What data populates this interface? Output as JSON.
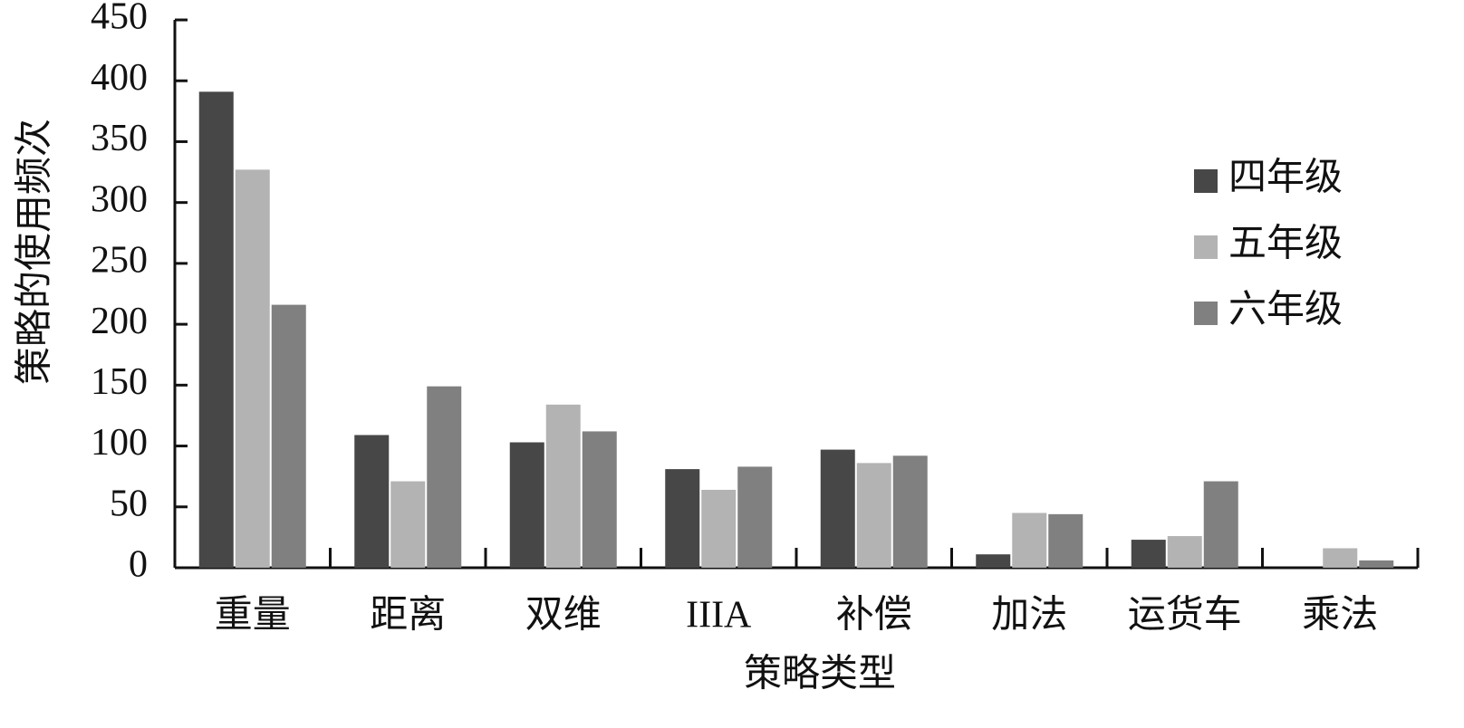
{
  "chart_data": {
    "type": "bar",
    "x_label": "策略类型",
    "y_label": "策略的使用频次",
    "categories": [
      "重量",
      "距离",
      "双维",
      "IIIA",
      "补偿",
      "加法",
      "运货车",
      "乘法"
    ],
    "series": [
      {
        "name": "四年级",
        "color": "#474747",
        "values": [
          391,
          109,
          103,
          81,
          97,
          11,
          23,
          0
        ]
      },
      {
        "name": "五年级",
        "color": "#b3b3b3",
        "values": [
          327,
          71,
          134,
          64,
          86,
          45,
          26,
          16
        ]
      },
      {
        "name": "六年级",
        "color": "#808080",
        "values": [
          216,
          149,
          112,
          83,
          92,
          44,
          71,
          6
        ]
      }
    ],
    "ylim": [
      0,
      450
    ],
    "yticks": [
      0,
      50,
      100,
      150,
      200,
      250,
      300,
      350,
      400,
      450
    ],
    "legend": "right"
  }
}
